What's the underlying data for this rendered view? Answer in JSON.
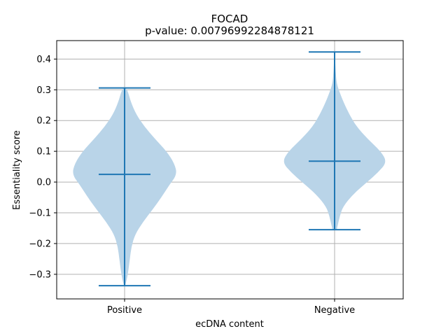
{
  "chart_data": {
    "type": "violin",
    "title": "FOCAD",
    "subtitle": "p-value: 0.00796992284878121",
    "xlabel": "ecDNA content",
    "ylabel": "Essentiality score",
    "categories": [
      "Positive",
      "Negative"
    ],
    "ylim": [
      -0.38,
      0.46
    ],
    "yticks": [
      -0.3,
      -0.2,
      -0.1,
      0.0,
      0.1,
      0.2,
      0.3,
      0.4
    ],
    "ytick_labels": [
      "−0.3",
      "−0.2",
      "−0.1",
      "0.0",
      "0.1",
      "0.2",
      "0.3",
      "0.4"
    ],
    "grid": true,
    "colors": {
      "body": "#b9d4e8",
      "lines": "#1f77b4",
      "grid": "#b0b0b0"
    },
    "series": [
      {
        "category": "Positive",
        "min": -0.337,
        "max": 0.306,
        "median": 0.025,
        "density": [
          [
            -0.337,
            0.01
          ],
          [
            -0.32,
            0.04
          ],
          [
            -0.29,
            0.07
          ],
          [
            -0.25,
            0.1
          ],
          [
            -0.21,
            0.13
          ],
          [
            -0.17,
            0.2
          ],
          [
            -0.13,
            0.35
          ],
          [
            -0.09,
            0.53
          ],
          [
            -0.05,
            0.7
          ],
          [
            -0.01,
            0.85
          ],
          [
            0.025,
            1.0
          ],
          [
            0.06,
            0.95
          ],
          [
            0.1,
            0.8
          ],
          [
            0.14,
            0.58
          ],
          [
            0.18,
            0.38
          ],
          [
            0.22,
            0.22
          ],
          [
            0.26,
            0.12
          ],
          [
            0.29,
            0.07
          ],
          [
            0.306,
            0.03
          ]
        ]
      },
      {
        "category": "Negative",
        "min": -0.155,
        "max": 0.423,
        "median": 0.068,
        "density": [
          [
            -0.155,
            0.04
          ],
          [
            -0.14,
            0.06
          ],
          [
            -0.11,
            0.1
          ],
          [
            -0.08,
            0.16
          ],
          [
            -0.04,
            0.35
          ],
          [
            0.0,
            0.62
          ],
          [
            0.03,
            0.82
          ],
          [
            0.065,
            1.0
          ],
          [
            0.1,
            0.88
          ],
          [
            0.14,
            0.63
          ],
          [
            0.18,
            0.42
          ],
          [
            0.22,
            0.28
          ],
          [
            0.26,
            0.17
          ],
          [
            0.29,
            0.1
          ],
          [
            0.32,
            0.04
          ],
          [
            0.36,
            0.02
          ],
          [
            0.4,
            0.01
          ],
          [
            0.423,
            0.005
          ]
        ]
      }
    ]
  }
}
